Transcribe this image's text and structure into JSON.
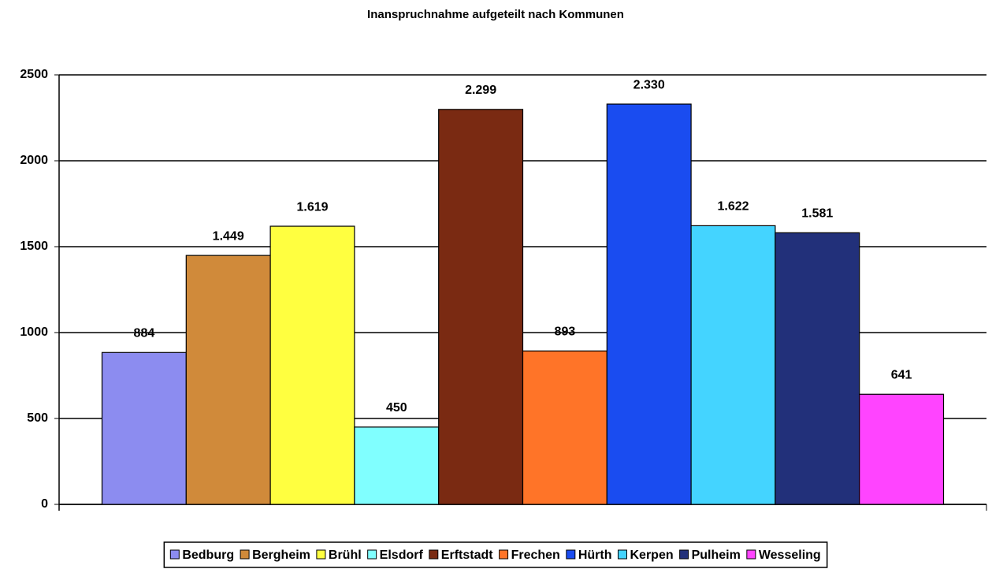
{
  "chart_data": {
    "type": "bar",
    "title": "Inanspruchnahme aufgeteilt nach Kommunen",
    "series": [
      {
        "name": "Bedburg",
        "color": "#8c8cf0",
        "values": [
          884
        ],
        "value_labels": [
          "884"
        ]
      },
      {
        "name": "Bergheim",
        "color": "#d08a3a",
        "values": [
          1449
        ],
        "value_labels": [
          "1.449"
        ]
      },
      {
        "name": "Brühl",
        "color": "#ffff40",
        "values": [
          1619
        ],
        "value_labels": [
          "1.619"
        ]
      },
      {
        "name": "Elsdorf",
        "color": "#80ffff",
        "values": [
          450
        ],
        "value_labels": [
          "450"
        ]
      },
      {
        "name": "Erftstadt",
        "color": "#7a2a12",
        "values": [
          2299
        ],
        "value_labels": [
          "2.299"
        ]
      },
      {
        "name": "Frechen",
        "color": "#ff7428",
        "values": [
          893
        ],
        "value_labels": [
          "893"
        ]
      },
      {
        "name": "Hürth",
        "color": "#1a4cf0",
        "values": [
          2330
        ],
        "value_labels": [
          "2.330"
        ]
      },
      {
        "name": "Kerpen",
        "color": "#44d4ff",
        "values": [
          1622
        ],
        "value_labels": [
          "1.622"
        ]
      },
      {
        "name": "Pulheim",
        "color": "#22307a",
        "values": [
          1581
        ],
        "value_labels": [
          "1.581"
        ]
      },
      {
        "name": "Wesseling",
        "color": "#ff44ff",
        "values": [
          641
        ],
        "value_labels": [
          "641"
        ]
      }
    ],
    "ylim": [
      0,
      2500
    ],
    "yticks": [
      0,
      500,
      1000,
      1500,
      2000,
      2500
    ],
    "grid": true,
    "legend": "bottom"
  }
}
